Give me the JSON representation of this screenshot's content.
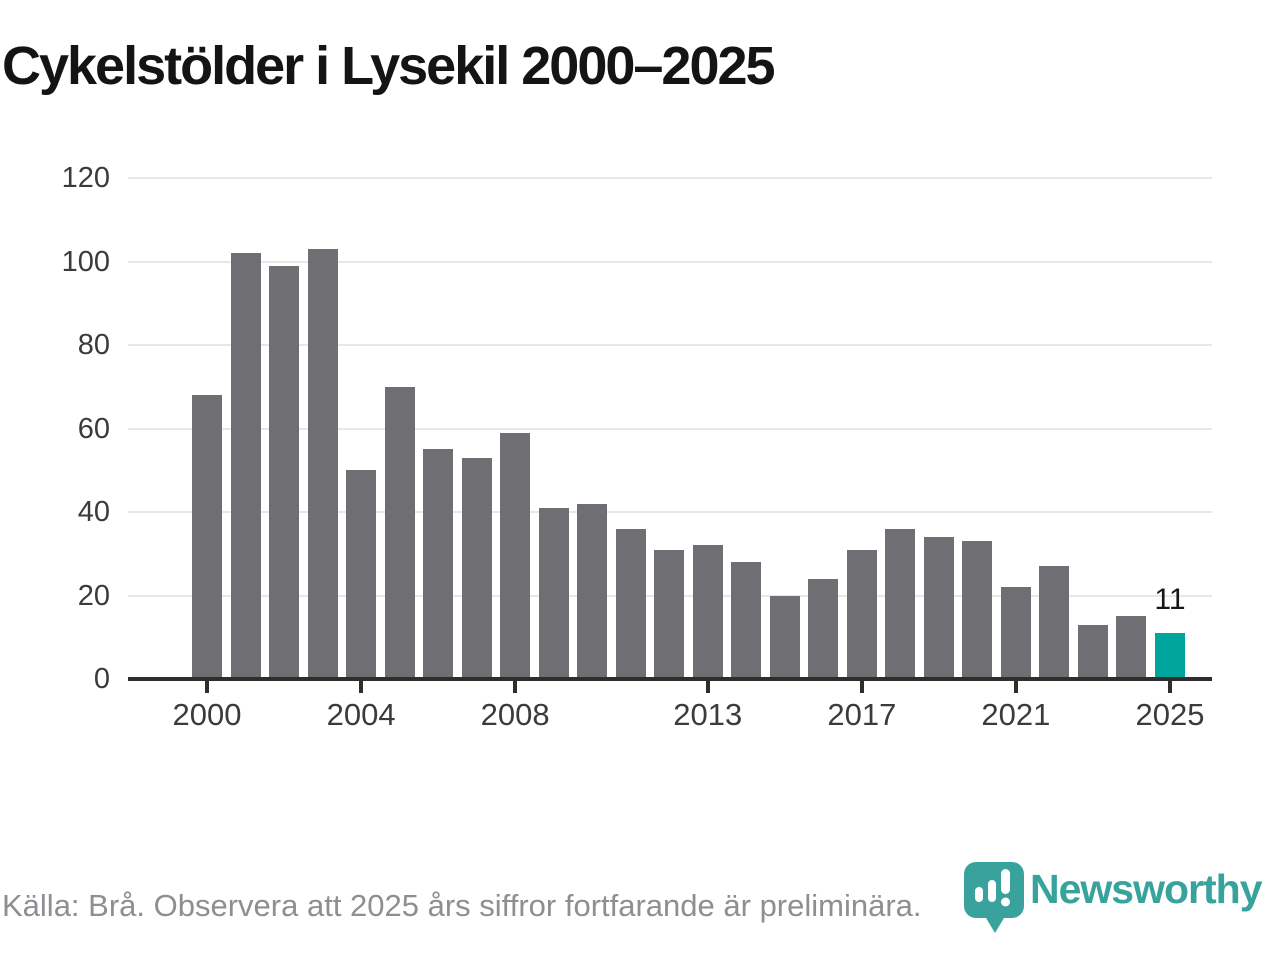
{
  "title": "Cykelstölder i Lysekil 2000–2025",
  "source_note": "Källa: Brå. Observera att 2025 års siffror fortfarande är preliminära.",
  "logo": {
    "text": "Newsworthy"
  },
  "colors": {
    "bar": "#6e6e73",
    "highlight_bar": "#00a59c",
    "gridline": "#e7e7e7",
    "axis": "#2e2e2e",
    "tick_label": "#3b3b3b",
    "title_text": "#141414",
    "value_label": "#161616",
    "source_text": "#8e8e93",
    "logo_teal": "#38a39d"
  },
  "chart_data": {
    "type": "bar",
    "title": "Cykelstölder i Lysekil 2000–2025",
    "categories": [
      2000,
      2001,
      2002,
      2003,
      2004,
      2005,
      2006,
      2007,
      2008,
      2009,
      2010,
      2011,
      2012,
      2013,
      2014,
      2015,
      2016,
      2017,
      2018,
      2019,
      2020,
      2021,
      2022,
      2023,
      2024,
      2025
    ],
    "values": [
      68,
      102,
      99,
      103,
      50,
      70,
      55,
      53,
      59,
      41,
      42,
      36,
      31,
      32,
      28,
      20,
      24,
      31,
      36,
      34,
      33,
      22,
      27,
      13,
      15,
      11
    ],
    "highlight_year": 2025,
    "highlight_value_label": "11",
    "xlabel": "",
    "ylabel": "",
    "ylim": [
      0,
      120
    ],
    "y_ticks": [
      0,
      20,
      40,
      60,
      80,
      100,
      120
    ],
    "x_tick_labels": [
      "2000",
      "2004",
      "2008",
      "2013",
      "2017",
      "2021",
      "2025"
    ],
    "grid": "horizontal",
    "legend": "none"
  }
}
